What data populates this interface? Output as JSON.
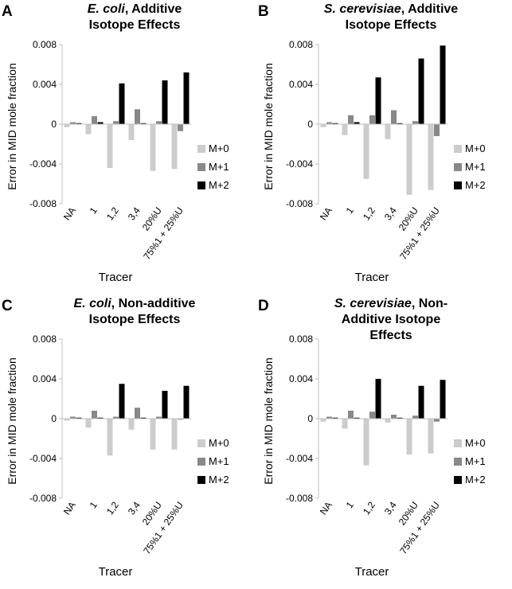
{
  "colors": {
    "M+0": "#cccccc",
    "M+1": "#888888",
    "M+2": "#000000",
    "axis": "#bfbfbf"
  },
  "chart_data": [
    {
      "panel": "A",
      "type": "bar",
      "title": {
        "species": "E. coli",
        "rest": ", Additive Isotope Effects"
      },
      "xlabel": "Tracer",
      "ylabel": "Error in MID mole fraction",
      "ylim": [
        -0.008,
        0.008
      ],
      "yticks": [
        "0.008",
        "0.004",
        "0",
        "-0.004",
        "-0.008"
      ],
      "categories": [
        "NA",
        "1",
        "1,2",
        "3,4",
        "20%U",
        "75%1 + 25%U"
      ],
      "legend": [
        "M+0",
        "M+1",
        "M+2"
      ],
      "series": [
        {
          "name": "M+0",
          "values": [
            -0.0003,
            -0.001,
            -0.0044,
            -0.0016,
            -0.0047,
            -0.0045
          ]
        },
        {
          "name": "M+1",
          "values": [
            0.0002,
            0.0008,
            0.0003,
            0.0015,
            0.0003,
            -0.0007
          ]
        },
        {
          "name": "M+2",
          "values": [
            0.0001,
            0.0002,
            0.0041,
            0.0001,
            0.0044,
            0.0052
          ]
        }
      ]
    },
    {
      "panel": "B",
      "type": "bar",
      "title": {
        "species": "S. cerevisiae",
        "rest": ", Additive Isotope Effects"
      },
      "xlabel": "Tracer",
      "ylabel": "Error in MID mole fraction",
      "ylim": [
        -0.008,
        0.008
      ],
      "yticks": [
        "0.008",
        "0.004",
        "0",
        "-0.004",
        "-0.008"
      ],
      "categories": [
        "NA",
        "1",
        "1,2",
        "3,4",
        "20%U",
        "75%1 + 25%U"
      ],
      "legend": [
        "M+0",
        "M+1",
        "M+2"
      ],
      "series": [
        {
          "name": "M+0",
          "values": [
            -0.0003,
            -0.0011,
            -0.0055,
            -0.0015,
            -0.0071,
            -0.0066
          ]
        },
        {
          "name": "M+1",
          "values": [
            0.0002,
            0.0009,
            0.0009,
            0.0014,
            0.0003,
            -0.0012
          ]
        },
        {
          "name": "M+2",
          "values": [
            0.0001,
            0.0002,
            0.0047,
            0.0001,
            0.0066,
            0.0079
          ]
        }
      ]
    },
    {
      "panel": "C",
      "type": "bar",
      "title": {
        "species": "E. coli",
        "rest": ", Non-additive Isotope Effects"
      },
      "xlabel": "Tracer",
      "ylabel": "Error in MID mole fraction",
      "ylim": [
        -0.008,
        0.008
      ],
      "yticks": [
        "0.008",
        "0.004",
        "0",
        "-0.004",
        "-0.008"
      ],
      "categories": [
        "NA",
        "1",
        "1,2",
        "3,4",
        "20%U",
        "75%1 + 25%U"
      ],
      "legend": [
        "M+0",
        "M+1",
        "M+2"
      ],
      "series": [
        {
          "name": "M+0",
          "values": [
            -0.0002,
            -0.0009,
            -0.0037,
            -0.0011,
            -0.0031,
            -0.0031
          ]
        },
        {
          "name": "M+1",
          "values": [
            0.0002,
            0.0008,
            0.0002,
            0.0011,
            0.0002,
            -0.0001
          ]
        },
        {
          "name": "M+2",
          "values": [
            0.0001,
            0.0001,
            0.0035,
            0.0001,
            0.0028,
            0.0033
          ]
        }
      ]
    },
    {
      "panel": "D",
      "type": "bar",
      "title": {
        "species": "S. cerevisiae",
        "rest": ", Non-Additive Isotope Effects"
      },
      "xlabel": "Tracer",
      "ylabel": "Error in MID mole fraction",
      "ylim": [
        -0.008,
        0.008
      ],
      "yticks": [
        "0.008",
        "0.004",
        "0",
        "-0.004",
        "-0.008"
      ],
      "categories": [
        "NA",
        "1",
        "1,2",
        "3,4",
        "20%U",
        "75%1 + 25%U"
      ],
      "legend": [
        "M+0",
        "M+1",
        "M+2"
      ],
      "series": [
        {
          "name": "M+0",
          "values": [
            -0.0003,
            -0.001,
            -0.0047,
            -0.0004,
            -0.0036,
            -0.0035
          ]
        },
        {
          "name": "M+1",
          "values": [
            0.0002,
            0.0008,
            0.0007,
            0.0004,
            0.0003,
            -0.0003
          ]
        },
        {
          "name": "M+2",
          "values": [
            0.0001,
            0.0001,
            0.004,
            0.0001,
            0.0033,
            0.0039
          ]
        }
      ]
    }
  ]
}
